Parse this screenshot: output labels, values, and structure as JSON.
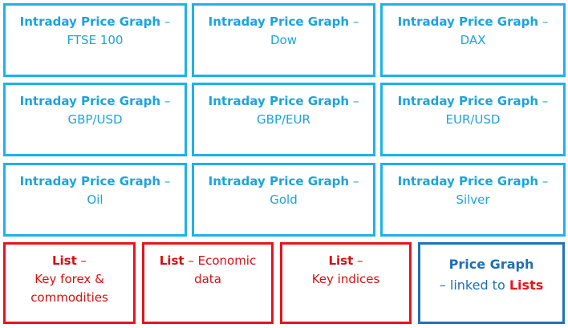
{
  "grid": [
    {
      "title": "Intraday Price Graph",
      "separator": "–",
      "name": "FTSE 100"
    },
    {
      "title": "Intraday Price Graph",
      "separator": "–",
      "name": "Dow"
    },
    {
      "title": "Intraday Price Graph",
      "separator": "–",
      "name": "DAX"
    },
    {
      "title": "Intraday Price Graph",
      "separator": "–",
      "name": "GBP/USD"
    },
    {
      "title": "Intraday Price Graph",
      "separator": "–",
      "name": "GBP/EUR"
    },
    {
      "title": "Intraday Price Graph",
      "separator": "–",
      "name": "EUR/USD"
    },
    {
      "title": "Intraday Price Graph",
      "separator": "–",
      "name": "Oil"
    },
    {
      "title": "Intraday Price Graph",
      "separator": "–",
      "name": "Gold"
    },
    {
      "title": "Intraday Price Graph",
      "separator": "–",
      "name": "Silver"
    }
  ],
  "lists": [
    {
      "title": "List",
      "separator": "–",
      "name": "Key forex & commodities"
    },
    {
      "title": "List",
      "separator": "– Economic",
      "name": "data"
    },
    {
      "title": "List",
      "separator": "–",
      "name": "Key indices"
    }
  ],
  "linked": {
    "title": "Price Graph",
    "text": "– linked to",
    "highlight": "Lists"
  }
}
